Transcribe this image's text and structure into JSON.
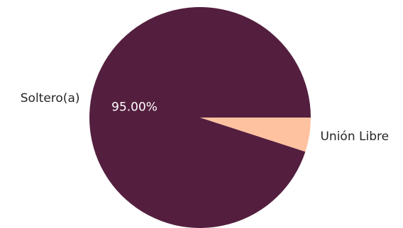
{
  "chart_data": {
    "type": "pie",
    "title": "",
    "categories": [
      "Soltero(a)",
      "Unión Libre"
    ],
    "values": [
      95.0,
      5.0
    ],
    "percent_labels": [
      "95.00%",
      ""
    ],
    "colors": [
      "#541f3f",
      "#ffc2a1"
    ],
    "start_angle_deg": 0,
    "direction": "counterclockwise",
    "legend": "none"
  }
}
